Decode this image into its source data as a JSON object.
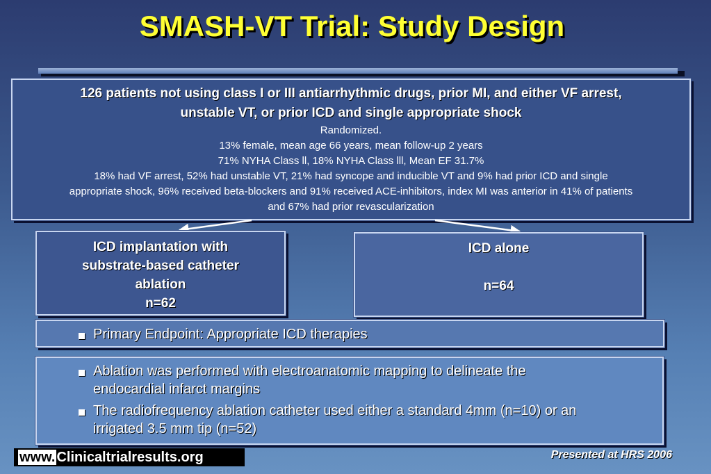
{
  "slide": {
    "title": "SMASH-VT Trial: Study Design"
  },
  "population": {
    "headline_line1": "126 patients not using class I or III antiarrhythmic drugs, prior MI, and either VF arrest,",
    "headline_line2": "unstable VT, or prior ICD and single appropriate shock",
    "line_randomized": "Randomized.",
    "line_demographics": "13% female, mean age 66 years, mean follow-up 2 years",
    "line_nyha": "71% NYHA Class ll, 18% NYHA Class lll, Mean EF 31.7%",
    "line_history1": "18% had VF arrest, 52% had unstable VT, 21% had syncope and inducible VT and 9% had prior ICD and single",
    "line_history2": "appropriate shock, 96% received beta-blockers and 91% received ACE-inhibitors, index MI was anterior in 41% of patients",
    "line_history3": "and 67% had prior revascularization"
  },
  "arms": {
    "left_line1": "ICD implantation with",
    "left_line2": "substrate-based catheter",
    "left_line3": "ablation",
    "left_n": "n=62",
    "right_label": "ICD alone",
    "right_n": "n=64"
  },
  "endpoint": {
    "text": "Primary Endpoint: Appropriate ICD therapies"
  },
  "notes": [
    {
      "line1": "Ablation was performed with electroanatomic mapping to delineate the",
      "line2": "endocardial infarct margins"
    },
    {
      "line1": "The radiofrequency ablation catheter used either a standard 4mm (n=10) or an",
      "line2": "irrigated 3.5 mm tip (n=52)"
    }
  ],
  "footer": {
    "url_prefix": "www.",
    "url_rest": "Clinicaltrialresults.org",
    "presented": "Presented at HRS 2006"
  },
  "colors": {
    "title": "#ffff33",
    "background_top": "#2c3c70",
    "background_bottom": "#6892c2"
  }
}
